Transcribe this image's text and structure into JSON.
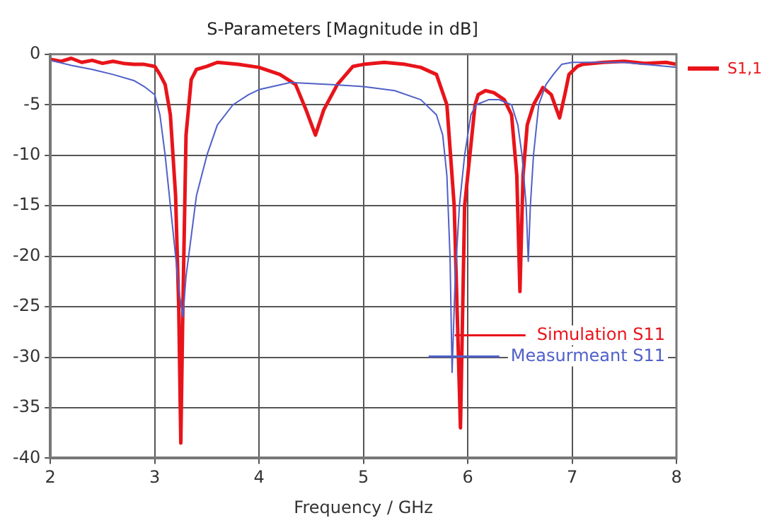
{
  "chart_data": {
    "type": "line",
    "title": "S-Parameters [Magnitude in dB]",
    "xlabel": "Frequency / GHz",
    "xlim": [
      2,
      8
    ],
    "xticks": [
      2,
      3,
      4,
      5,
      6,
      7,
      8
    ],
    "ylim": [
      -40,
      0
    ],
    "yticks": [
      -40,
      -35,
      -30,
      -25,
      -20,
      -15,
      -10,
      -5,
      0
    ],
    "grid": true,
    "legend": "bottom right",
    "marker": "none",
    "line_style": "solid",
    "annotations": [
      "S1,1"
    ],
    "series": [
      {
        "name": "Simulation S11",
        "color": "#e8141b",
        "x": [
          2,
          2.1,
          2.2,
          2.3,
          2.4,
          2.5,
          2.6,
          2.7,
          2.8,
          2.9,
          3.0,
          3.05,
          3.1,
          3.15,
          3.2,
          3.23,
          3.25,
          3.27,
          3.3,
          3.35,
          3.4,
          3.5,
          3.6,
          3.8,
          4.0,
          4.2,
          4.35,
          4.45,
          4.54,
          4.62,
          4.75,
          4.9,
          5.0,
          5.2,
          5.4,
          5.55,
          5.7,
          5.8,
          5.87,
          5.93,
          5.97,
          6.02,
          6.07,
          6.1,
          6.17,
          6.25,
          6.35,
          6.42,
          6.47,
          6.5,
          6.53,
          6.57,
          6.63,
          6.72,
          6.8,
          6.88,
          6.93,
          6.97,
          7.05,
          7.1,
          7.3,
          7.5,
          7.7,
          7.9,
          8
        ],
        "values": [
          -0.5,
          -0.7,
          -0.4,
          -0.8,
          -0.6,
          -0.9,
          -0.7,
          -0.9,
          -1.0,
          -1.0,
          -1.2,
          -2,
          -3,
          -6,
          -14,
          -25,
          -38.5,
          -25,
          -8,
          -2.5,
          -1.5,
          -1.2,
          -0.8,
          -1,
          -1.3,
          -2,
          -3,
          -5.5,
          -8,
          -5.5,
          -3,
          -1.2,
          -1,
          -0.8,
          -1,
          -1.3,
          -2,
          -5,
          -15,
          -37,
          -15,
          -10,
          -5,
          -4,
          -3.6,
          -3.8,
          -4.5,
          -6,
          -12,
          -23.5,
          -12,
          -7,
          -5,
          -3.3,
          -4,
          -6.3,
          -4,
          -2,
          -1.2,
          -1,
          -0.8,
          -0.7,
          -0.9,
          -0.8,
          -1.0
        ]
      },
      {
        "name": "Measurmeant S11",
        "color": "#5060c8",
        "x": [
          2,
          2.2,
          2.4,
          2.6,
          2.8,
          2.9,
          3.0,
          3.05,
          3.1,
          3.15,
          3.2,
          3.24,
          3.27,
          3.3,
          3.35,
          3.4,
          3.5,
          3.6,
          3.75,
          3.9,
          4.0,
          4.3,
          4.7,
          5.0,
          5.3,
          5.55,
          5.7,
          5.76,
          5.8,
          5.83,
          5.85,
          5.88,
          5.92,
          5.97,
          6.03,
          6.08,
          6.2,
          6.3,
          6.42,
          6.48,
          6.52,
          6.56,
          6.58,
          6.6,
          6.63,
          6.68,
          6.75,
          6.82,
          6.9,
          7.0,
          7.5,
          8
        ],
        "values": [
          -0.6,
          -1.1,
          -1.5,
          -2,
          -2.6,
          -3.2,
          -4,
          -6,
          -10,
          -15,
          -20,
          -24,
          -26,
          -22,
          -18,
          -14,
          -10,
          -7,
          -5,
          -4,
          -3.5,
          -2.8,
          -3,
          -3.2,
          -3.6,
          -4.5,
          -6,
          -8,
          -12,
          -20,
          -31.5,
          -22,
          -15,
          -10,
          -6,
          -5,
          -4.5,
          -4.5,
          -5,
          -7,
          -10,
          -15,
          -20.5,
          -15,
          -10,
          -5,
          -3,
          -2,
          -1,
          -0.8,
          -0.8,
          -1.3
        ]
      }
    ]
  }
}
